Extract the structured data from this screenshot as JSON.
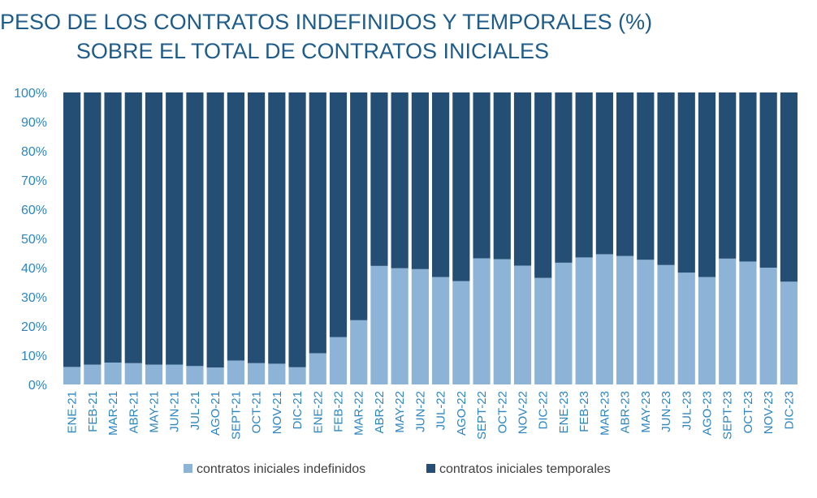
{
  "title_lines": [
    "PESO DE LOS CONTRATOS INDEFINIDOS Y TEMPORALES (%)",
    "SOBRE EL TOTAL DE CONTRATOS INICIALES"
  ],
  "colors": {
    "indefinidos": "#8DB4D6",
    "temporales": "#254E74",
    "title": "#1F5C8A",
    "ticks": "#2E86C1"
  },
  "chart_data": {
    "type": "bar",
    "stacked": true,
    "percent": true,
    "title": "PESO DE LOS CONTRATOS INDEFINIDOS Y TEMPORALES (%) SOBRE EL TOTAL DE CONTRATOS INICIALES",
    "categories": [
      "ENE-21",
      "FEB-21",
      "MAR-21",
      "ABR-21",
      "MAY-21",
      "JUN-21",
      "JUL-21",
      "AGO-21",
      "SEPT-21",
      "OCT-21",
      "NOV-21",
      "DIC-21",
      "ENE-22",
      "FEB-22",
      "MAR-22",
      "ABR-22",
      "MAY-22",
      "JUN-22",
      "JUL-22",
      "AGO-22",
      "SEPT-22",
      "OCT-22",
      "NOV-22",
      "DIC-22",
      "ENE-23",
      "FEB-23",
      "MAR-23",
      "ABR-23",
      "MAY-23",
      "JUN-23",
      "JUL-23",
      "AGO-23",
      "SEPT-23",
      "OCT-23",
      "NOV-23",
      "DIC-23"
    ],
    "series": [
      {
        "name": "contratos iniciales indefinidos",
        "values": [
          6.0,
          6.8,
          7.5,
          7.3,
          6.8,
          6.8,
          6.3,
          5.8,
          8.2,
          7.3,
          7.1,
          5.9,
          10.7,
          16.2,
          22.0,
          40.6,
          39.8,
          39.5,
          36.8,
          35.4,
          43.2,
          42.9,
          40.7,
          36.5,
          41.7,
          43.5,
          44.6,
          44.0,
          42.7,
          40.9,
          38.3,
          36.8,
          43.1,
          42.1,
          40.0,
          35.2
        ]
      },
      {
        "name": "contratos iniciales temporales",
        "values": [
          94.0,
          93.2,
          92.5,
          92.7,
          93.2,
          93.2,
          93.7,
          94.2,
          91.8,
          92.7,
          92.9,
          94.1,
          89.3,
          83.8,
          78.0,
          59.4,
          60.2,
          60.5,
          63.2,
          64.6,
          56.8,
          57.1,
          59.3,
          63.5,
          58.3,
          56.5,
          55.4,
          56.0,
          57.3,
          59.1,
          61.7,
          63.2,
          56.9,
          57.9,
          60.0,
          64.8
        ]
      }
    ],
    "ylim": [
      0,
      100
    ],
    "yticks": [
      "0%",
      "10%",
      "20%",
      "30%",
      "40%",
      "50%",
      "60%",
      "70%",
      "80%",
      "90%",
      "100%"
    ],
    "grid": false,
    "legend": "bottom"
  }
}
